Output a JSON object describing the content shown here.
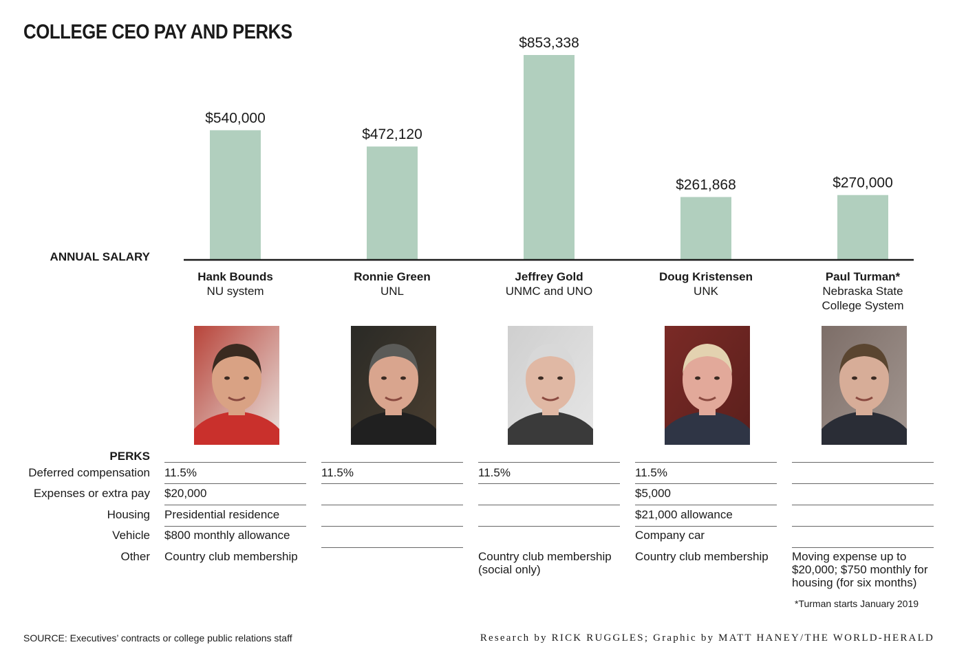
{
  "title": "COLLEGE CEO PAY AND PERKS",
  "salary_label": "ANNUAL SALARY",
  "chart_data": {
    "type": "bar",
    "title": "COLLEGE CEO PAY AND PERKS",
    "ylabel": "ANNUAL SALARY",
    "categories": [
      "Hank Bounds",
      "Ronnie Green",
      "Jeffrey Gold",
      "Doug Kristensen",
      "Paul Turman*"
    ],
    "values": [
      540000,
      472120,
      853338,
      261868,
      270000
    ],
    "value_labels": [
      "$540,000",
      "$472,120",
      "$853,338",
      "$261,868",
      "$270,000"
    ],
    "ylim": [
      0,
      853338
    ],
    "color": "#b1cfbe",
    "grid": false
  },
  "people": [
    {
      "name": "Hank Bounds",
      "org": "NU system"
    },
    {
      "name": "Ronnie Green",
      "org": "UNL"
    },
    {
      "name": "Jeffrey Gold",
      "org": "UNMC and UNO"
    },
    {
      "name": "Doug Kristensen",
      "org": "UNK"
    },
    {
      "name": "Paul Turman*",
      "org": "Nebraska State College System"
    }
  ],
  "perks": {
    "title": "PERKS",
    "row_labels": [
      "Deferred compensation",
      "Expenses or extra pay",
      "Housing",
      "Vehicle",
      "Other"
    ],
    "columns": [
      [
        "11.5%",
        "$20,000",
        "Presidential residence",
        "$800 monthly allowance",
        "Country club membership"
      ],
      [
        "11.5%",
        "",
        "",
        "",
        ""
      ],
      [
        "11.5%",
        "",
        "",
        "",
        "Country club membership (social only)"
      ],
      [
        "11.5%",
        "$5,000",
        "$21,000 allowance",
        "Company car",
        "Country club membership"
      ],
      [
        "",
        "",
        "",
        "",
        "Moving expense up to $20,000; $750 monthly for housing (for six months)"
      ]
    ]
  },
  "footnote": "*Turman starts January 2019",
  "source": "SOURCE: Executives’ contracts or college public relations staff",
  "credit": "Research by RICK RUGGLES; Graphic by MATT HANEY/THE WORLD-HERALD"
}
